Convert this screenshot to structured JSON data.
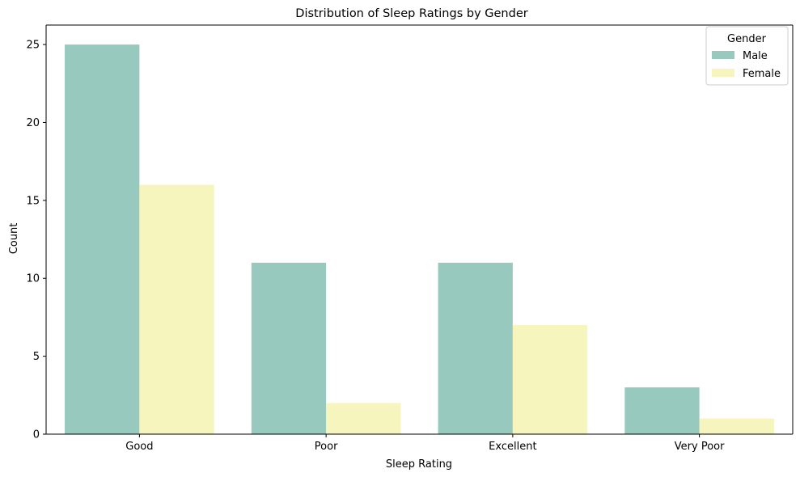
{
  "chart_data": {
    "type": "bar",
    "title": "Distribution of Sleep Ratings by Gender",
    "xlabel": "Sleep Rating",
    "ylabel": "Count",
    "categories": [
      "Good",
      "Poor",
      "Excellent",
      "Very Poor"
    ],
    "series": [
      {
        "name": "Male",
        "values": [
          25,
          11,
          11,
          3
        ],
        "color": "#97c9bf"
      },
      {
        "name": "Female",
        "values": [
          16,
          2,
          7,
          1
        ],
        "color": "#f5f5bd"
      }
    ],
    "ylim": [
      0,
      26.25
    ],
    "yticks": [
      0,
      5,
      10,
      15,
      20,
      25
    ],
    "grid": false,
    "legend": {
      "title": "Gender",
      "position": "top-right"
    }
  }
}
